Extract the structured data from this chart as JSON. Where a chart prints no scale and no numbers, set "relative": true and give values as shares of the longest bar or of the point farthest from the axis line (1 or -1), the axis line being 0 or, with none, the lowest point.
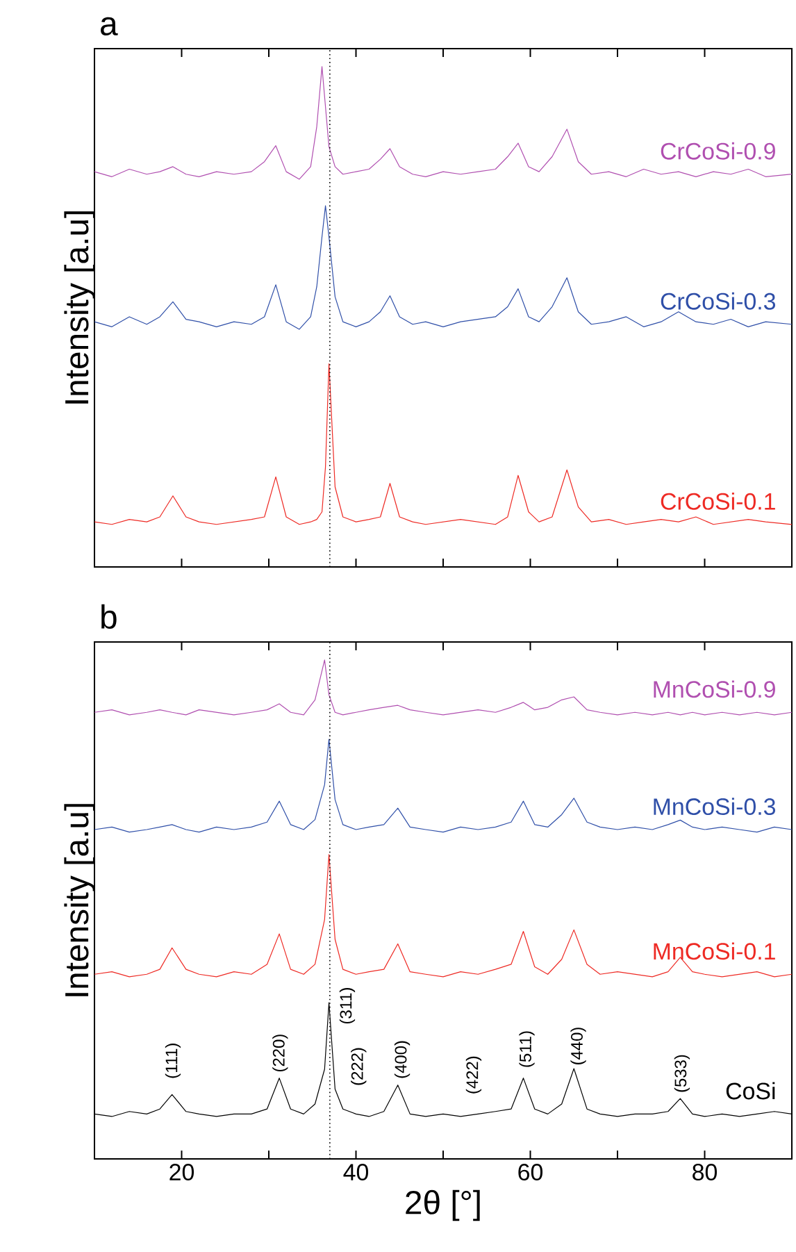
{
  "chart_data": [
    {
      "type": "line",
      "title": "a",
      "ylabel": "Intensity [a.u]",
      "relative": true,
      "tick_labels": false,
      "xlim": [
        10,
        90
      ],
      "xticks": [
        20,
        {
          "value": 30,
          "label": null
        },
        40,
        {
          "value": 50,
          "label": null
        },
        60,
        {
          "value": 70,
          "label": null
        },
        80
      ],
      "x": [
        10,
        12,
        14,
        16,
        17.5,
        19,
        20.5,
        22,
        24,
        26,
        28,
        29.5,
        30.8,
        32,
        33.5,
        34.8,
        35.5,
        36.1,
        36.5,
        36.9,
        37.6,
        38.5,
        40,
        41.5,
        42.8,
        43.9,
        45,
        46.5,
        48,
        50,
        52,
        54,
        56,
        57.4,
        58.6,
        59.8,
        61,
        62.5,
        64.2,
        65.5,
        67,
        69,
        71,
        73,
        75,
        77,
        79,
        81,
        83,
        85,
        87,
        90
      ],
      "series": [
        {
          "name": "CrCoSi-0.9",
          "color": "#b04fb0",
          "values": [
            0.79,
            0.78,
            0.795,
            0.785,
            0.79,
            0.8,
            0.785,
            0.78,
            0.79,
            0.785,
            0.79,
            0.81,
            0.842,
            0.79,
            0.775,
            0.8,
            0.88,
            1.0,
            0.92,
            0.84,
            0.8,
            0.785,
            0.79,
            0.795,
            0.815,
            0.836,
            0.8,
            0.785,
            0.78,
            0.79,
            0.785,
            0.79,
            0.795,
            0.82,
            0.847,
            0.8,
            0.79,
            0.82,
            0.875,
            0.81,
            0.785,
            0.79,
            0.78,
            0.795,
            0.785,
            0.79,
            0.78,
            0.79,
            0.785,
            0.795,
            0.78,
            0.785
          ]
        },
        {
          "name": "CrCoSi-0.3",
          "color": "#2f4fa8",
          "values": [
            0.49,
            0.48,
            0.5,
            0.485,
            0.5,
            0.53,
            0.495,
            0.49,
            0.48,
            0.49,
            0.485,
            0.5,
            0.564,
            0.49,
            0.475,
            0.5,
            0.56,
            0.66,
            0.722,
            0.66,
            0.54,
            0.49,
            0.48,
            0.49,
            0.51,
            0.542,
            0.5,
            0.485,
            0.49,
            0.48,
            0.49,
            0.495,
            0.5,
            0.52,
            0.556,
            0.5,
            0.49,
            0.52,
            0.578,
            0.51,
            0.485,
            0.49,
            0.5,
            0.48,
            0.49,
            0.51,
            0.49,
            0.485,
            0.495,
            0.48,
            0.49,
            0.485
          ]
        },
        {
          "name": "CrCoSi-0.1",
          "color": "#ee2a24",
          "values": [
            0.09,
            0.085,
            0.095,
            0.09,
            0.1,
            0.142,
            0.1,
            0.09,
            0.085,
            0.09,
            0.095,
            0.1,
            0.18,
            0.1,
            0.085,
            0.09,
            0.095,
            0.11,
            0.2,
            0.406,
            0.16,
            0.1,
            0.09,
            0.095,
            0.1,
            0.167,
            0.1,
            0.09,
            0.085,
            0.09,
            0.095,
            0.09,
            0.085,
            0.1,
            0.183,
            0.11,
            0.09,
            0.1,
            0.194,
            0.12,
            0.09,
            0.095,
            0.085,
            0.09,
            0.095,
            0.09,
            0.1,
            0.085,
            0.09,
            0.095,
            0.09,
            0.085
          ]
        }
      ],
      "ref_lines": [
        {
          "axis": "x",
          "value": 37,
          "color": "#000000",
          "line_style": "dotted"
        }
      ]
    },
    {
      "type": "line",
      "title": "b",
      "xlabel": "2θ [°]",
      "ylabel": "Intensity [a.u]",
      "relative": true,
      "tick_labels": "x",
      "xlim": [
        10,
        90
      ],
      "xticks": [
        20,
        {
          "value": 30,
          "label": null
        },
        40,
        {
          "value": 50,
          "label": null
        },
        60,
        {
          "value": 70,
          "label": null
        },
        80
      ],
      "x": [
        10,
        12,
        14,
        16,
        17.5,
        18.9,
        20.5,
        22,
        24,
        26,
        28,
        29.8,
        31.2,
        32.5,
        34,
        35.3,
        36.4,
        36.9,
        37.6,
        38.5,
        40,
        41.5,
        43.2,
        44.8,
        46.2,
        48,
        50,
        52,
        54,
        56,
        57.8,
        59.2,
        60.5,
        62,
        63.6,
        65,
        66.5,
        68,
        70,
        72,
        74,
        75.8,
        77.2,
        78.6,
        80,
        82,
        84,
        86,
        88,
        90
      ],
      "series": [
        {
          "name": "MnCoSi-0.9",
          "color": "#b04fb0",
          "values": [
            0.895,
            0.9,
            0.89,
            0.895,
            0.9,
            0.895,
            0.89,
            0.9,
            0.895,
            0.89,
            0.895,
            0.9,
            0.912,
            0.895,
            0.89,
            0.92,
            1.0,
            0.93,
            0.895,
            0.89,
            0.895,
            0.9,
            0.905,
            0.909,
            0.9,
            0.895,
            0.89,
            0.895,
            0.9,
            0.895,
            0.905,
            0.915,
            0.9,
            0.905,
            0.92,
            0.926,
            0.9,
            0.895,
            0.89,
            0.895,
            0.89,
            0.895,
            0.89,
            0.895,
            0.89,
            0.895,
            0.89,
            0.895,
            0.89,
            0.895
          ]
        },
        {
          "name": "MnCoSi-0.3",
          "color": "#2f4fa8",
          "values": [
            0.66,
            0.665,
            0.655,
            0.66,
            0.665,
            0.67,
            0.66,
            0.655,
            0.665,
            0.66,
            0.665,
            0.675,
            0.717,
            0.67,
            0.66,
            0.68,
            0.75,
            0.841,
            0.72,
            0.67,
            0.66,
            0.665,
            0.67,
            0.703,
            0.665,
            0.66,
            0.655,
            0.665,
            0.66,
            0.665,
            0.675,
            0.717,
            0.67,
            0.665,
            0.69,
            0.723,
            0.675,
            0.665,
            0.66,
            0.665,
            0.66,
            0.67,
            0.679,
            0.665,
            0.66,
            0.665,
            0.66,
            0.655,
            0.665,
            0.66
          ]
        },
        {
          "name": "MnCoSi-0.1",
          "color": "#ee2a24",
          "values": [
            0.37,
            0.375,
            0.365,
            0.37,
            0.38,
            0.423,
            0.38,
            0.37,
            0.365,
            0.375,
            0.37,
            0.39,
            0.451,
            0.38,
            0.37,
            0.39,
            0.48,
            0.61,
            0.44,
            0.38,
            0.37,
            0.375,
            0.38,
            0.431,
            0.375,
            0.37,
            0.365,
            0.375,
            0.37,
            0.38,
            0.39,
            0.456,
            0.385,
            0.37,
            0.4,
            0.459,
            0.39,
            0.37,
            0.375,
            0.37,
            0.365,
            0.375,
            0.404,
            0.375,
            0.37,
            0.365,
            0.37,
            0.375,
            0.365,
            0.37
          ]
        },
        {
          "name": "CoSi",
          "color": "#000000",
          "values": [
            0.09,
            0.085,
            0.095,
            0.09,
            0.1,
            0.129,
            0.095,
            0.09,
            0.085,
            0.09,
            0.09,
            0.1,
            0.162,
            0.1,
            0.09,
            0.11,
            0.18,
            0.313,
            0.14,
            0.1,
            0.09,
            0.085,
            0.095,
            0.148,
            0.09,
            0.085,
            0.09,
            0.085,
            0.09,
            0.095,
            0.1,
            0.162,
            0.1,
            0.09,
            0.11,
            0.181,
            0.1,
            0.09,
            0.085,
            0.09,
            0.09,
            0.095,
            0.121,
            0.09,
            0.085,
            0.09,
            0.085,
            0.09,
            0.095,
            0.09
          ]
        }
      ],
      "annotations": [
        "(111)",
        "(220)",
        "(311)",
        "(222)",
        "(400)",
        "(422)",
        "(511)",
        "(440)",
        "(533)"
      ],
      "ref_lines": [
        {
          "axis": "x",
          "value": 37,
          "color": "#000000",
          "line_style": "dotted"
        }
      ]
    }
  ]
}
